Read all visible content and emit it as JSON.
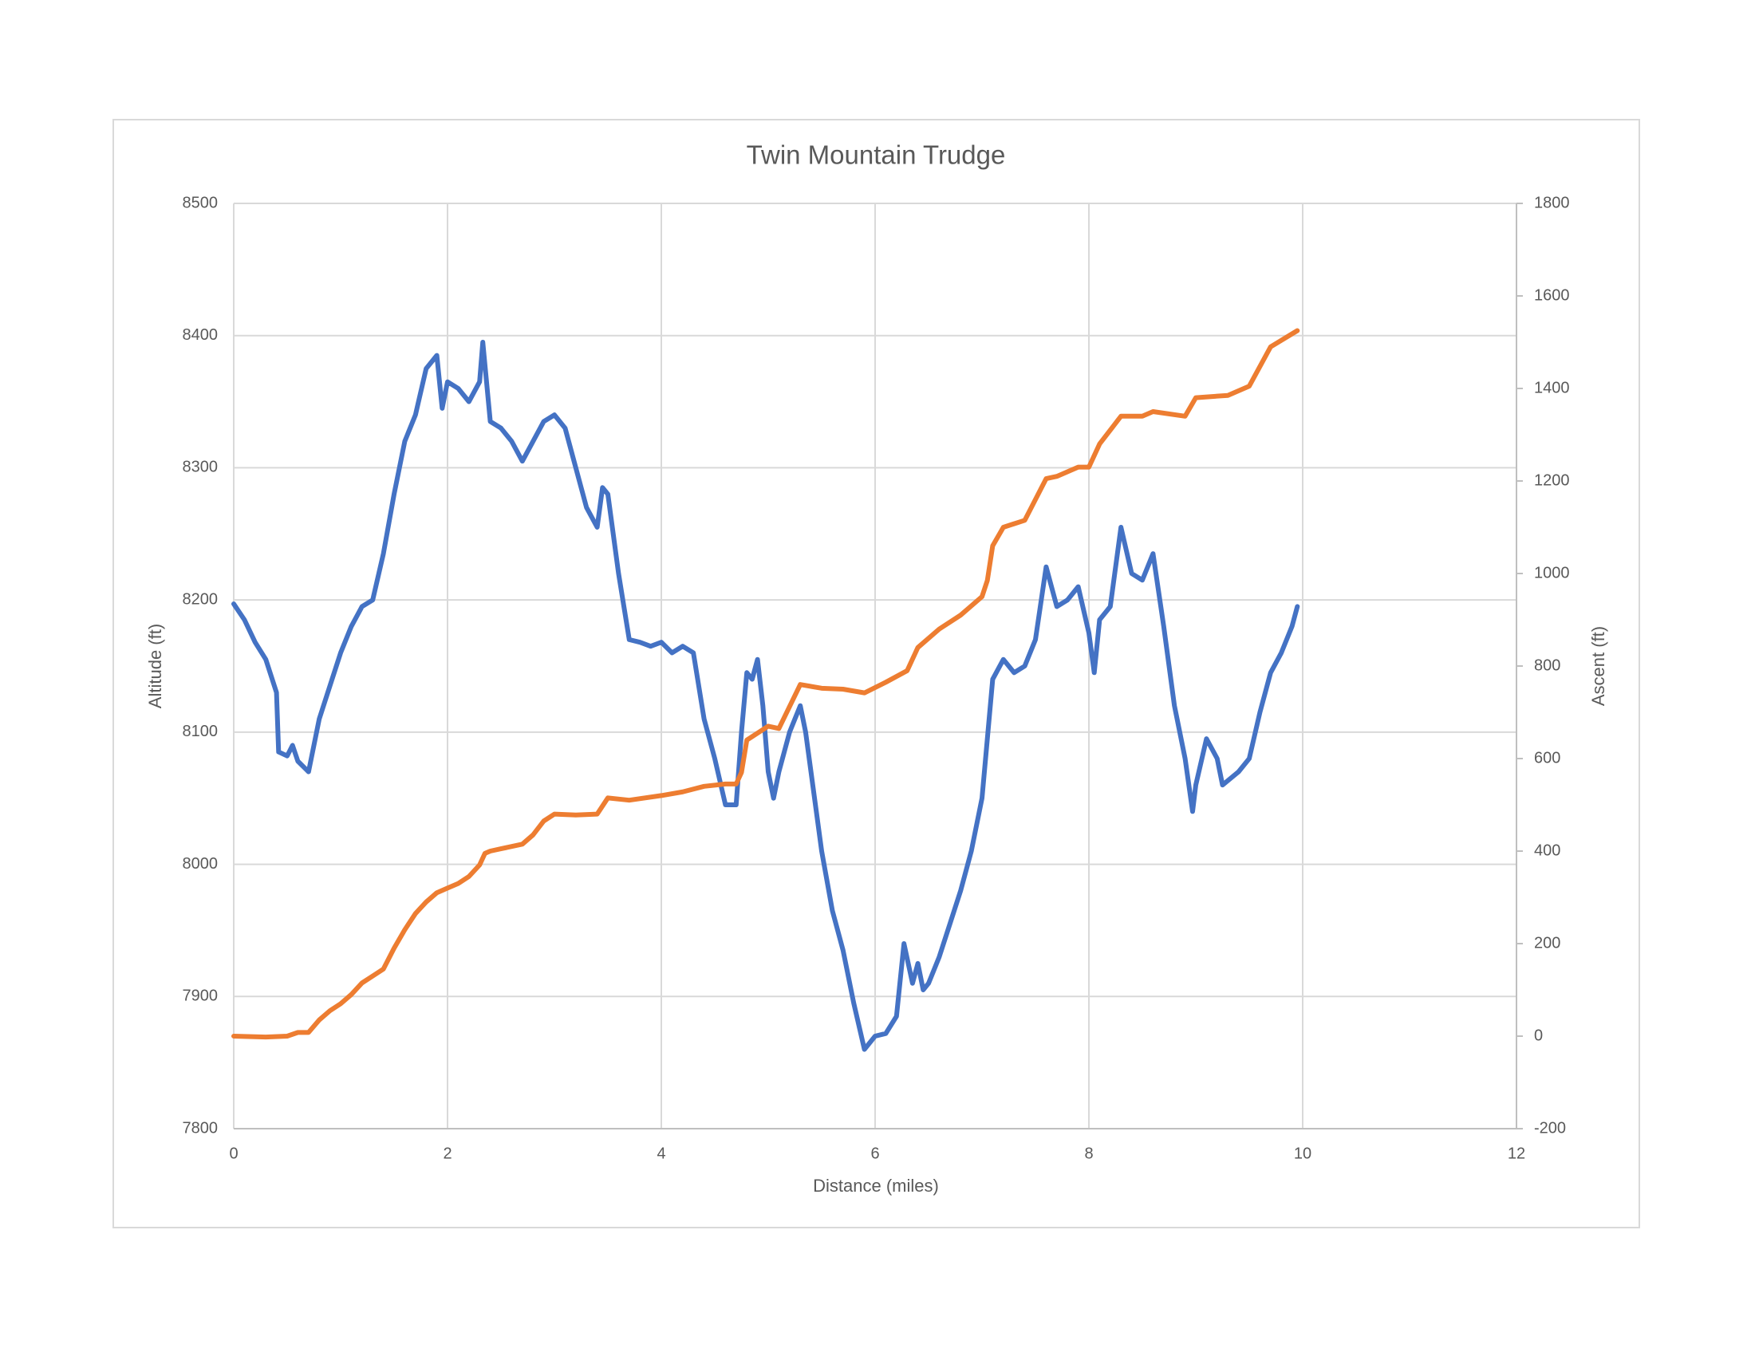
{
  "chart_data": {
    "type": "line",
    "title": "Twin Mountain Trudge",
    "x_label": "Distance (miles)",
    "y_label": "Altitude (ft)",
    "y2_label": "Ascent (ft)",
    "xlim": [
      0,
      12
    ],
    "xticks": [
      0,
      2,
      4,
      6,
      8,
      10,
      12
    ],
    "ylim": [
      7800,
      8500
    ],
    "yticks": [
      7800,
      7900,
      8000,
      8100,
      8200,
      8300,
      8400,
      8500
    ],
    "y2lim": [
      -200,
      1800
    ],
    "y2ticks": [
      -200,
      0,
      200,
      400,
      600,
      800,
      1000,
      1200,
      1400,
      1600,
      1800
    ],
    "grid": true,
    "series": [
      {
        "color": "#4472c4",
        "x": [
          0,
          0.1,
          0.2,
          0.3,
          0.4,
          0.42,
          0.5,
          0.55,
          0.6,
          0.7,
          0.8,
          0.9,
          1.0,
          1.1,
          1.2,
          1.3,
          1.4,
          1.5,
          1.6,
          1.7,
          1.8,
          1.9,
          1.95,
          2.0,
          2.1,
          2.2,
          2.3,
          2.33,
          2.4,
          2.5,
          2.6,
          2.7,
          2.8,
          2.9,
          3.0,
          3.1,
          3.2,
          3.3,
          3.4,
          3.45,
          3.5,
          3.6,
          3.7,
          3.8,
          3.9,
          4.0,
          4.1,
          4.2,
          4.3,
          4.4,
          4.5,
          4.6,
          4.7,
          4.75,
          4.8,
          4.85,
          4.9,
          4.95,
          5.0,
          5.05,
          5.1,
          5.2,
          5.3,
          5.35,
          5.4,
          5.5,
          5.6,
          5.7,
          5.8,
          5.9,
          6.0,
          6.1,
          6.2,
          6.27,
          6.35,
          6.4,
          6.45,
          6.5,
          6.6,
          6.7,
          6.8,
          6.9,
          7.0,
          7.1,
          7.2,
          7.3,
          7.4,
          7.5,
          7.6,
          7.7,
          7.8,
          7.9,
          8.0,
          8.05,
          8.1,
          8.2,
          8.3,
          8.4,
          8.5,
          8.6,
          8.7,
          8.8,
          8.9,
          8.97,
          9.0,
          9.1,
          9.2,
          9.25,
          9.4,
          9.5,
          9.6,
          9.7,
          9.8,
          9.9,
          9.95
        ],
        "values": [
          8197,
          8185,
          8168,
          8155,
          8130,
          8085,
          8082,
          8090,
          8078,
          8070,
          8110,
          8135,
          8160,
          8180,
          8195,
          8200,
          8235,
          8280,
          8320,
          8340,
          8375,
          8385,
          8345,
          8365,
          8360,
          8350,
          8365,
          8395,
          8335,
          8330,
          8320,
          8305,
          8320,
          8335,
          8340,
          8330,
          8300,
          8270,
          8255,
          8285,
          8280,
          8220,
          8170,
          8168,
          8165,
          8168,
          8160,
          8165,
          8160,
          8110,
          8080,
          8045,
          8045,
          8100,
          8145,
          8140,
          8155,
          8120,
          8070,
          8050,
          8070,
          8100,
          8120,
          8100,
          8070,
          8010,
          7965,
          7935,
          7895,
          7860,
          7870,
          7872,
          7885,
          7940,
          7910,
          7925,
          7905,
          7910,
          7930,
          7955,
          7980,
          8010,
          8050,
          8140,
          8155,
          8145,
          8150,
          8170,
          8225,
          8195,
          8200,
          8210,
          8175,
          8145,
          8185,
          8195,
          8255,
          8220,
          8215,
          8235,
          8180,
          8120,
          8080,
          8040,
          8060,
          8095,
          8080,
          8060,
          8070,
          8080,
          8115,
          8145,
          8160,
          8180,
          8195
        ]
      },
      {
        "color": "#ed7d31",
        "axis": "y2",
        "x": [
          0,
          0.3,
          0.5,
          0.6,
          0.7,
          0.8,
          0.9,
          1.0,
          1.1,
          1.2,
          1.3,
          1.4,
          1.5,
          1.6,
          1.7,
          1.8,
          1.9,
          2.0,
          2.1,
          2.2,
          2.3,
          2.35,
          2.4,
          2.5,
          2.7,
          2.8,
          2.9,
          3.0,
          3.2,
          3.4,
          3.5,
          3.7,
          4.0,
          4.2,
          4.4,
          4.6,
          4.7,
          4.75,
          4.8,
          5.0,
          5.1,
          5.3,
          5.5,
          5.7,
          5.9,
          6.1,
          6.3,
          6.4,
          6.6,
          6.8,
          7.0,
          7.05,
          7.1,
          7.2,
          7.4,
          7.6,
          7.7,
          7.9,
          8.0,
          8.1,
          8.3,
          8.5,
          8.6,
          8.9,
          9.0,
          9.3,
          9.5,
          9.7,
          9.95
        ],
        "values": [
          0,
          -2,
          0,
          8,
          8,
          35,
          55,
          70,
          90,
          115,
          130,
          145,
          190,
          230,
          265,
          290,
          310,
          320,
          330,
          345,
          370,
          395,
          400,
          405,
          415,
          435,
          465,
          480,
          478,
          480,
          515,
          510,
          520,
          528,
          540,
          545,
          545,
          570,
          640,
          670,
          665,
          760,
          752,
          750,
          742,
          765,
          790,
          840,
          880,
          910,
          950,
          985,
          1060,
          1100,
          1115,
          1205,
          1210,
          1230,
          1230,
          1280,
          1340,
          1340,
          1350,
          1340,
          1380,
          1385,
          1405,
          1490,
          1525
        ]
      }
    ]
  }
}
